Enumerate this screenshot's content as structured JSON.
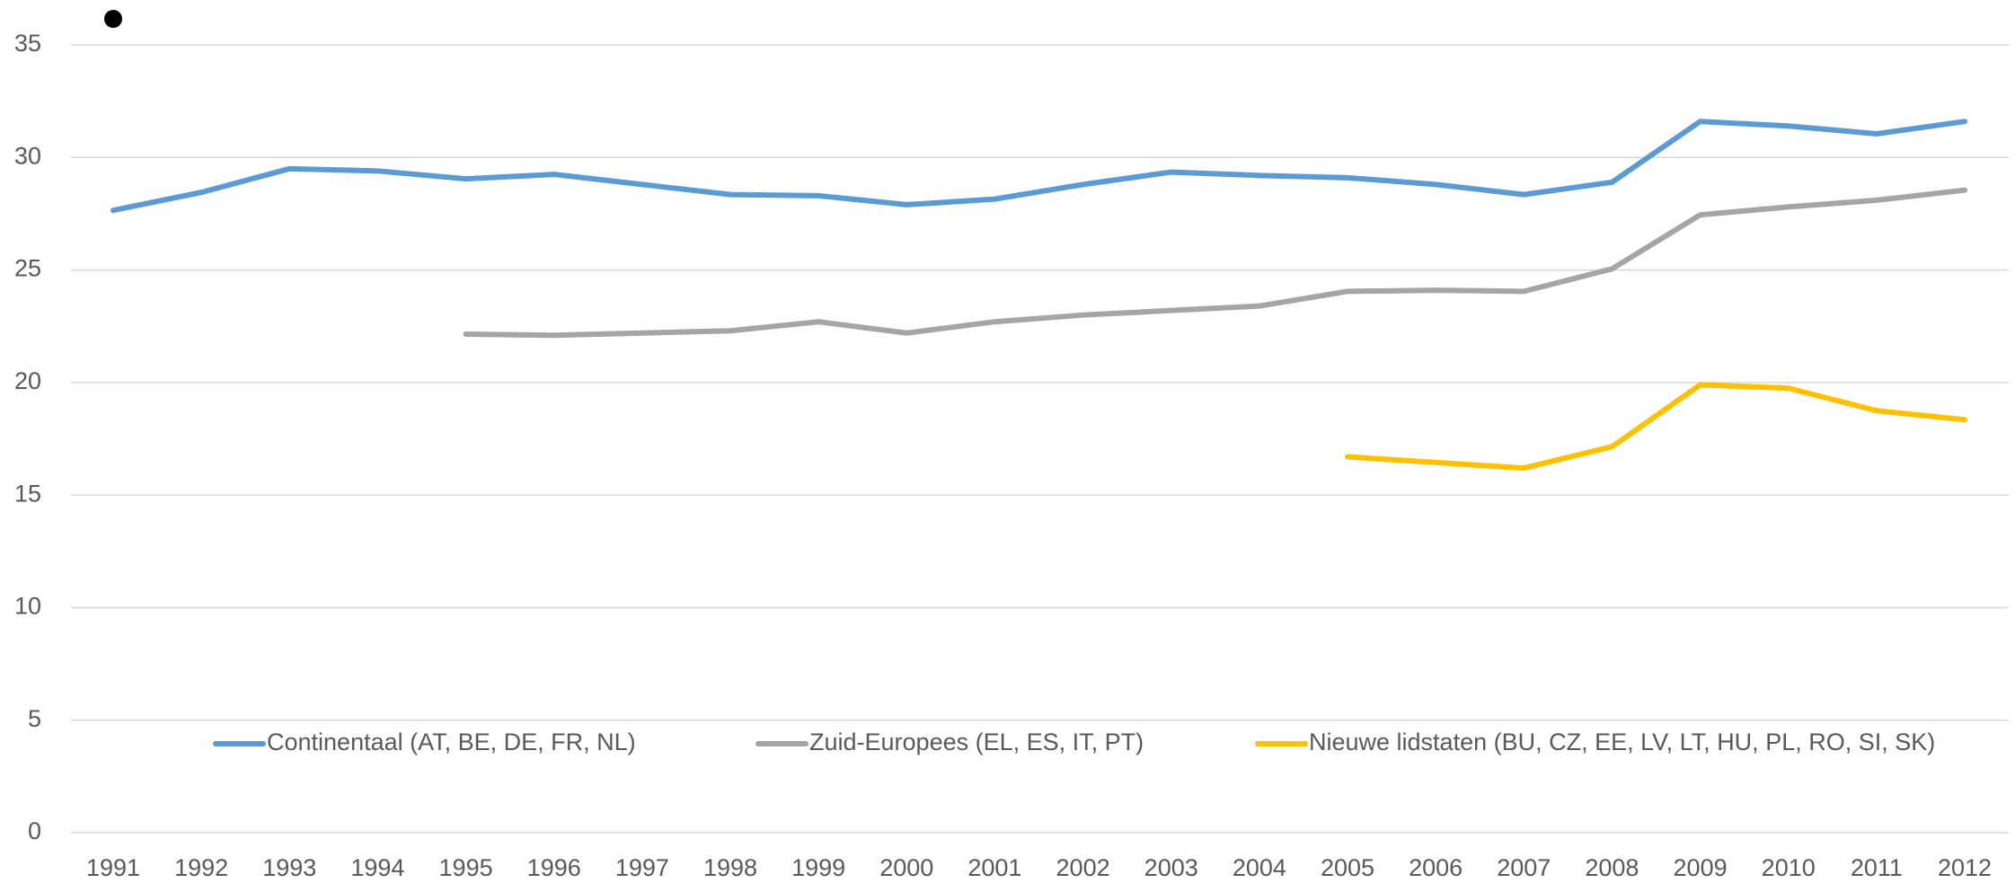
{
  "chart_data": {
    "type": "line",
    "x": [
      "1991",
      "1992",
      "1993",
      "1994",
      "1995",
      "1996",
      "1997",
      "1998",
      "1999",
      "2000",
      "2001",
      "2002",
      "2003",
      "2004",
      "2005",
      "2006",
      "2007",
      "2008",
      "2009",
      "2010",
      "2011",
      "2012"
    ],
    "series": [
      {
        "name": "Continentaal (AT, BE, DE, FR, NL)",
        "color": "#5b9bd5",
        "values": [
          27.65,
          28.45,
          29.5,
          29.4,
          29.05,
          29.25,
          28.8,
          28.35,
          28.3,
          27.9,
          28.15,
          28.8,
          29.35,
          29.2,
          29.1,
          28.8,
          28.35,
          28.9,
          31.6,
          31.4,
          31.05,
          31.6
        ]
      },
      {
        "name": "Zuid-Europees (EL, ES, IT, PT)",
        "color": "#a5a5a5",
        "values": [
          null,
          null,
          null,
          null,
          22.15,
          22.1,
          22.2,
          22.3,
          22.7,
          22.2,
          22.7,
          23.0,
          23.2,
          23.4,
          24.05,
          24.1,
          24.05,
          25.05,
          27.45,
          27.8,
          28.1,
          28.55
        ]
      },
      {
        "name": "Nieuwe lidstaten (BU, CZ, EE, LV, LT, HU, PL, RO, SI, SK)",
        "color": "#ffc000",
        "values": [
          null,
          null,
          null,
          null,
          null,
          null,
          null,
          null,
          null,
          null,
          null,
          null,
          null,
          null,
          16.7,
          16.45,
          16.2,
          17.15,
          19.9,
          19.75,
          18.75,
          18.35
        ]
      }
    ],
    "ylim": [
      0,
      35
    ],
    "yticks": [
      0,
      5,
      10,
      15,
      20,
      25,
      30,
      35
    ],
    "grid": true,
    "legend": "bottom"
  }
}
